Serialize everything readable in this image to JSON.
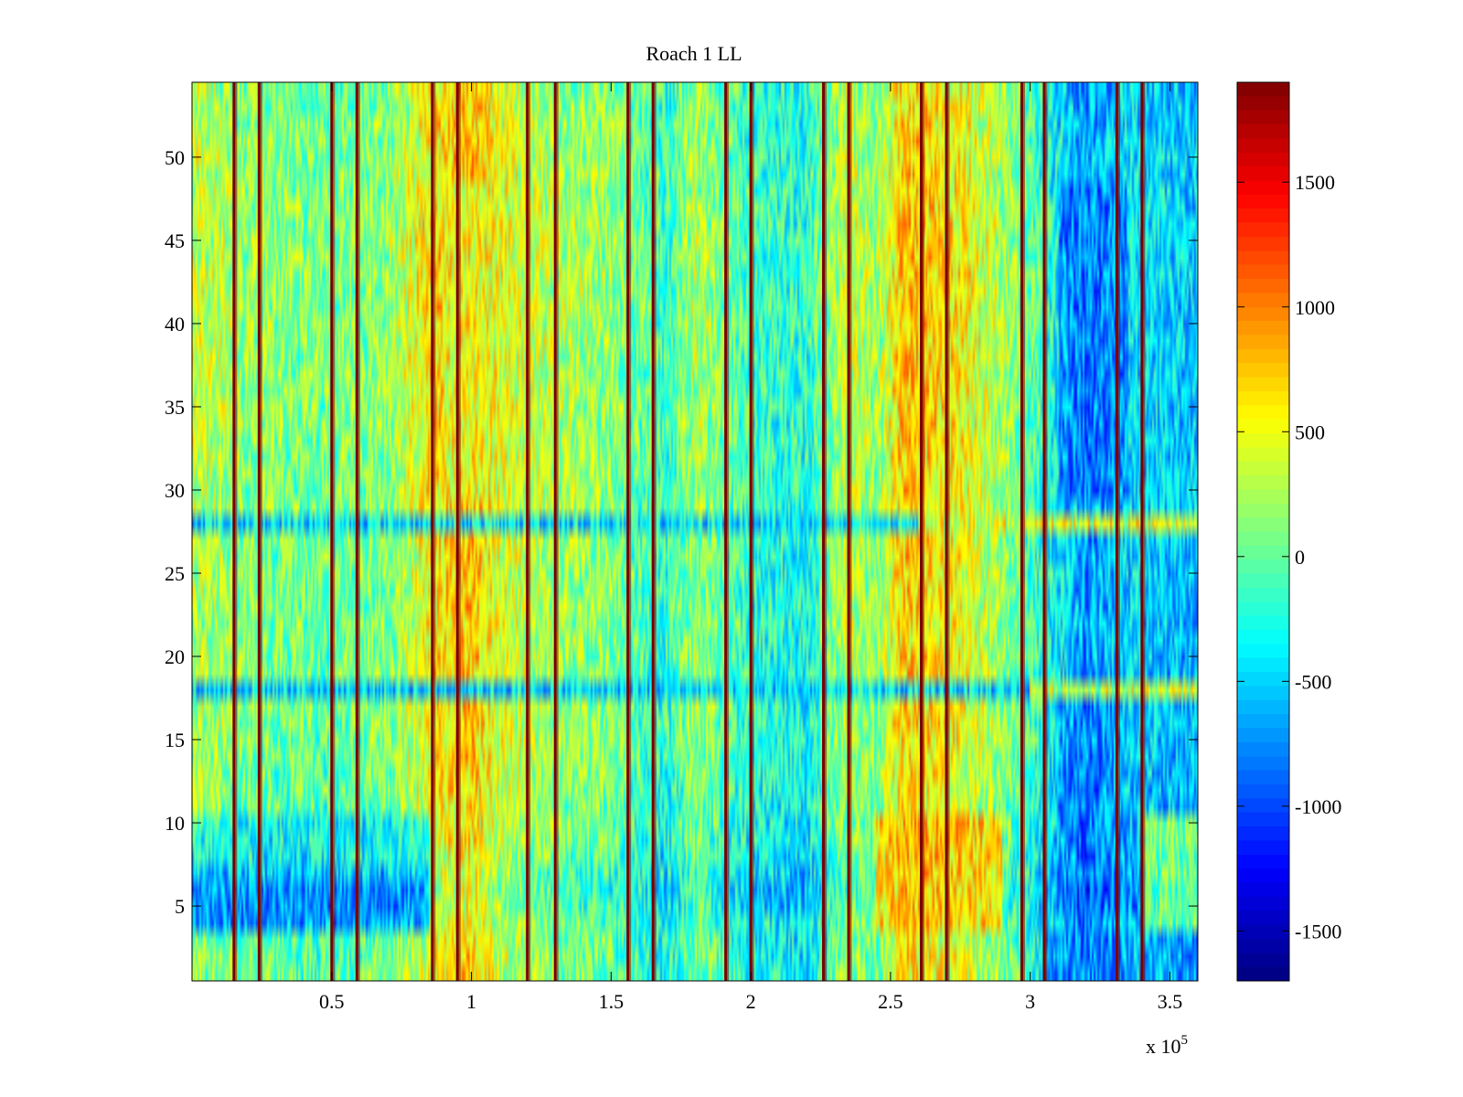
{
  "chart_data": {
    "type": "heatmap",
    "title": "Roach 1 LL",
    "xlabel": "",
    "ylabel": "",
    "x_exponent_label": "x 10",
    "x_exponent_power": "5",
    "xlim": [
      0,
      3.6
    ],
    "ylim": [
      0.5,
      54.5
    ],
    "x_unit_scale": 100000,
    "xticks": [
      0.5,
      1,
      1.5,
      2,
      2.5,
      3,
      3.5
    ],
    "xtick_labels": [
      "0.5",
      "1",
      "1.5",
      "2",
      "2.5",
      "3",
      "3.5"
    ],
    "yticks": [
      5,
      10,
      15,
      20,
      25,
      30,
      35,
      40,
      45,
      50
    ],
    "ytick_labels": [
      "5",
      "10",
      "15",
      "20",
      "25",
      "30",
      "35",
      "40",
      "45",
      "50"
    ],
    "rows": 54,
    "colormap": "jet",
    "colorbar": {
      "clim": [
        -1700,
        1900
      ],
      "ticks": [
        -1500,
        -1000,
        -500,
        0,
        500,
        1000,
        1500
      ],
      "tick_labels": [
        "-1500",
        "-1000",
        "-500",
        "0",
        "500",
        "1000",
        "1500"
      ]
    },
    "vertical_stripes_x": [
      0.15,
      0.24,
      0.5,
      0.59,
      0.86,
      0.95,
      1.2,
      1.3,
      1.56,
      1.65,
      1.91,
      2.0,
      2.26,
      2.35,
      2.61,
      2.7,
      2.97,
      3.05,
      3.31,
      3.4
    ],
    "stripe_value": 1900,
    "horizontal_bands": [
      {
        "y": 28,
        "value": -450,
        "x_range": [
          0,
          2.6
        ]
      },
      {
        "y": 28,
        "value": 450,
        "x_range": [
          2.6,
          3.6
        ]
      },
      {
        "y": 18,
        "value": -500,
        "x_range": [
          0,
          3.0
        ]
      },
      {
        "y": 18,
        "value": 350,
        "x_range": [
          3.0,
          3.6
        ]
      }
    ],
    "column_profile": [
      {
        "x": 0.0,
        "value": 250
      },
      {
        "x": 0.15,
        "value": 100
      },
      {
        "x": 0.3,
        "value": 0
      },
      {
        "x": 0.5,
        "value": -50
      },
      {
        "x": 0.7,
        "value": 50
      },
      {
        "x": 0.86,
        "value": 500
      },
      {
        "x": 1.0,
        "value": 700
      },
      {
        "x": 1.1,
        "value": 350
      },
      {
        "x": 1.3,
        "value": 150
      },
      {
        "x": 1.5,
        "value": 50
      },
      {
        "x": 1.7,
        "value": -250
      },
      {
        "x": 1.8,
        "value": 150
      },
      {
        "x": 2.0,
        "value": -250
      },
      {
        "x": 2.2,
        "value": -350
      },
      {
        "x": 2.35,
        "value": 250
      },
      {
        "x": 2.45,
        "value": 50
      },
      {
        "x": 2.55,
        "value": 650
      },
      {
        "x": 2.75,
        "value": 450
      },
      {
        "x": 2.95,
        "value": 0
      },
      {
        "x": 3.05,
        "value": -300
      },
      {
        "x": 3.2,
        "value": -800
      },
      {
        "x": 3.35,
        "value": -500
      },
      {
        "x": 3.6,
        "value": -650
      }
    ],
    "row_profile": [
      {
        "y": 1,
        "value": 0
      },
      {
        "y": 4,
        "value": -150
      },
      {
        "y": 5.5,
        "value": -450
      },
      {
        "y": 9,
        "value": -100
      },
      {
        "y": 15,
        "value": 100
      },
      {
        "y": 25,
        "value": 100
      },
      {
        "y": 35,
        "value": 200
      },
      {
        "y": 45,
        "value": 250
      },
      {
        "y": 54,
        "value": 100
      }
    ],
    "regions": [
      {
        "x_range": [
          0,
          0.85
        ],
        "y_range": [
          3.5,
          7
        ],
        "value": -1000
      },
      {
        "x_range": [
          0,
          0.85
        ],
        "y_range": [
          7,
          10
        ],
        "value": -450
      },
      {
        "x_range": [
          2.45,
          2.9
        ],
        "y_range": [
          3.5,
          10
        ],
        "value": 900
      },
      {
        "x_range": [
          3.1,
          3.35
        ],
        "y_range": [
          30,
          48
        ],
        "value": -900
      },
      {
        "x_range": [
          3.05,
          3.35
        ],
        "y_range": [
          1,
          3
        ],
        "value": -800
      },
      {
        "x_range": [
          3.1,
          3.3
        ],
        "y_range": [
          10,
          17
        ],
        "value": -800
      },
      {
        "x_range": [
          3.4,
          3.6
        ],
        "y_range": [
          3.5,
          10
        ],
        "value": 400
      },
      {
        "x_range": [
          0.9,
          1.1
        ],
        "y_range": [
          30,
          48
        ],
        "value": 400
      }
    ],
    "noise_amplitude": 450,
    "random_seed": 7
  }
}
